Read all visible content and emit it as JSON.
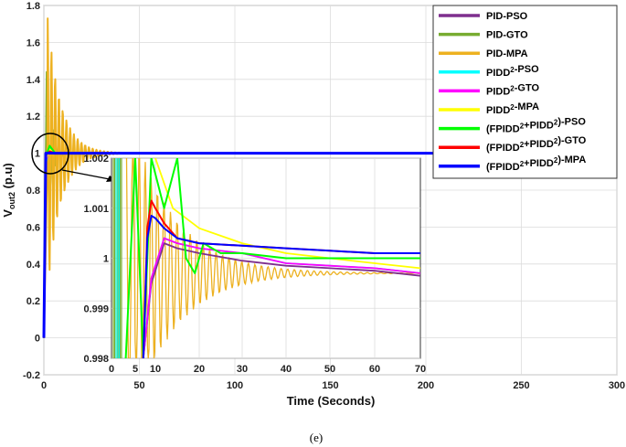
{
  "caption": "(e)",
  "chart_data": [
    {
      "type": "line",
      "xlabel": "Time (Seconds)",
      "ylabel_main": "V",
      "ylabel_sub": "out2",
      "ylabel_tail": " (p.u)",
      "xlim": [
        0,
        300
      ],
      "ylim": [
        -0.2,
        1.8
      ],
      "xticks": [
        "0",
        "50",
        "100",
        "150",
        "200",
        "250",
        "300"
      ],
      "yticks": [
        "-0.2",
        "0",
        "0.2",
        "0.4",
        "0.6",
        "0.8",
        "1",
        "1.2",
        "1.4",
        "1.6",
        "1.8"
      ],
      "grid": true,
      "legend_position": "top-right",
      "series": [
        {
          "name": "PID-PSO",
          "color": "#7E2F8E",
          "peak": 1.13,
          "x": [
            0,
            1,
            2,
            4,
            6,
            10,
            20,
            300
          ],
          "y": [
            0,
            1.0,
            1.13,
            1.06,
            1.02,
            1.005,
            1.0,
            1.0
          ]
        },
        {
          "name": "PID-GTO",
          "color": "#77AC30",
          "peak": 1.44,
          "x": [
            0,
            1,
            2,
            3,
            5,
            8,
            15,
            300
          ],
          "y": [
            0,
            1.1,
            1.44,
            1.2,
            1.08,
            1.02,
            1.0,
            1.0
          ]
        },
        {
          "name": "PID-MPA",
          "color": "#EDB120",
          "peak": 1.73,
          "x": [
            0,
            2,
            3,
            10,
            30,
            200
          ],
          "y": [
            0,
            1.0,
            1.73,
            1.3,
            1.0,
            1.0
          ]
        },
        {
          "name": "PIDD2-PSO",
          "color": "#00FFFF",
          "x": [
            0,
            1,
            3,
            6,
            300
          ],
          "y": [
            0,
            0.95,
            1.03,
            1.0,
            1.0
          ]
        },
        {
          "name": "PIDD2-GTO",
          "color": "#FF00FF",
          "x": [
            0,
            1,
            3,
            6,
            300
          ],
          "y": [
            0,
            0.96,
            1.02,
            1.0,
            1.0
          ]
        },
        {
          "name": "PIDD2-MPA",
          "color": "#FFFF00",
          "x": [
            0,
            1,
            3,
            6,
            300
          ],
          "y": [
            0,
            0.97,
            1.02,
            1.0,
            1.0
          ]
        },
        {
          "name": "(FPIDD2+PIDD2)-PSO",
          "color": "#00FF00",
          "x": [
            0,
            1,
            3,
            6,
            300
          ],
          "y": [
            0,
            0.98,
            1.04,
            1.0,
            1.0
          ]
        },
        {
          "name": "(FPIDD2+PIDD2)-GTO",
          "color": "#FF0000",
          "x": [
            0,
            1,
            3,
            6,
            300
          ],
          "y": [
            0,
            0.99,
            1.01,
            1.0,
            1.0
          ]
        },
        {
          "name": "(FPIDD2+PIDD2)-MPA",
          "color": "#0000FF",
          "x": [
            0,
            1,
            3,
            6,
            300
          ],
          "y": [
            0,
            1.0,
            1.001,
            1.0,
            1.0
          ]
        }
      ]
    },
    {
      "type": "line",
      "inset": true,
      "xticks": [
        "0",
        "5",
        "10",
        "20",
        "30",
        "40",
        "50",
        "60",
        "70"
      ],
      "yticks": [
        "0.998",
        "0.999",
        "1",
        "1.001",
        "1.002"
      ],
      "ylim": [
        0.998,
        1.002
      ],
      "series": [
        {
          "name": "PID-PSO",
          "x": [
            7,
            9,
            12,
            15,
            20,
            30,
            40,
            50,
            60,
            70
          ],
          "y": [
            0.998,
            0.9995,
            1.0003,
            1.0002,
            1.0001,
            0.99995,
            0.99985,
            0.9998,
            0.99975,
            0.99965
          ]
        },
        {
          "name": "PIDD2-PSO",
          "x": [
            7,
            9,
            12,
            15,
            20,
            30,
            40,
            50,
            60,
            70
          ],
          "y": [
            0.998,
            0.9996,
            1.0004,
            1.0003,
            1.0002,
            1.0001,
            0.9999,
            0.99985,
            0.9998,
            0.9997
          ]
        },
        {
          "name": "PIDD2-GTO",
          "x": [
            7,
            9,
            12,
            15,
            20,
            30,
            40,
            50,
            60,
            70
          ],
          "y": [
            0.998,
            0.9996,
            1.0004,
            1.0003,
            1.0002,
            1.0001,
            0.9999,
            0.99985,
            0.9998,
            0.9997
          ]
        },
        {
          "name": "PIDD2-MPA",
          "x": [
            10,
            12,
            14,
            20,
            30,
            40,
            50,
            60,
            70
          ],
          "y": [
            1.002,
            1.0015,
            1.001,
            1.0006,
            1.0003,
            1.0001,
            1.0,
            0.9999,
            0.9998
          ]
        },
        {
          "name": "(FPIDD2+PIDD2)-PSO",
          "x": [
            3,
            5,
            7,
            9,
            12,
            15,
            17,
            19,
            21,
            23,
            25,
            30,
            40,
            70
          ],
          "y": [
            0.998,
            1.002,
            0.998,
            1.002,
            1.001,
            1.002,
            1.0,
            0.9997,
            1.0003,
            1.0002,
            1.0001,
            1.0001,
            1.0,
            1.0
          ]
        },
        {
          "name": "(FPIDD2+PIDD2)-GTO",
          "x": [
            7,
            8,
            9,
            10,
            12,
            15,
            20,
            30,
            40,
            50,
            60,
            70
          ],
          "y": [
            0.998,
            1.0006,
            1.00115,
            1.001,
            1.0007,
            1.0004,
            1.0003,
            1.00025,
            1.0002,
            1.00015,
            1.0001,
            1.0001
          ]
        },
        {
          "name": "(FPIDD2+PIDD2)-MPA",
          "x": [
            7,
            8,
            9,
            10,
            12,
            15,
            20,
            30,
            40,
            50,
            60,
            70
          ],
          "y": [
            0.998,
            1.0004,
            1.00085,
            1.0008,
            1.0006,
            1.0004,
            1.0003,
            1.00025,
            1.0002,
            1.00015,
            1.0001,
            1.0001
          ]
        }
      ]
    }
  ]
}
